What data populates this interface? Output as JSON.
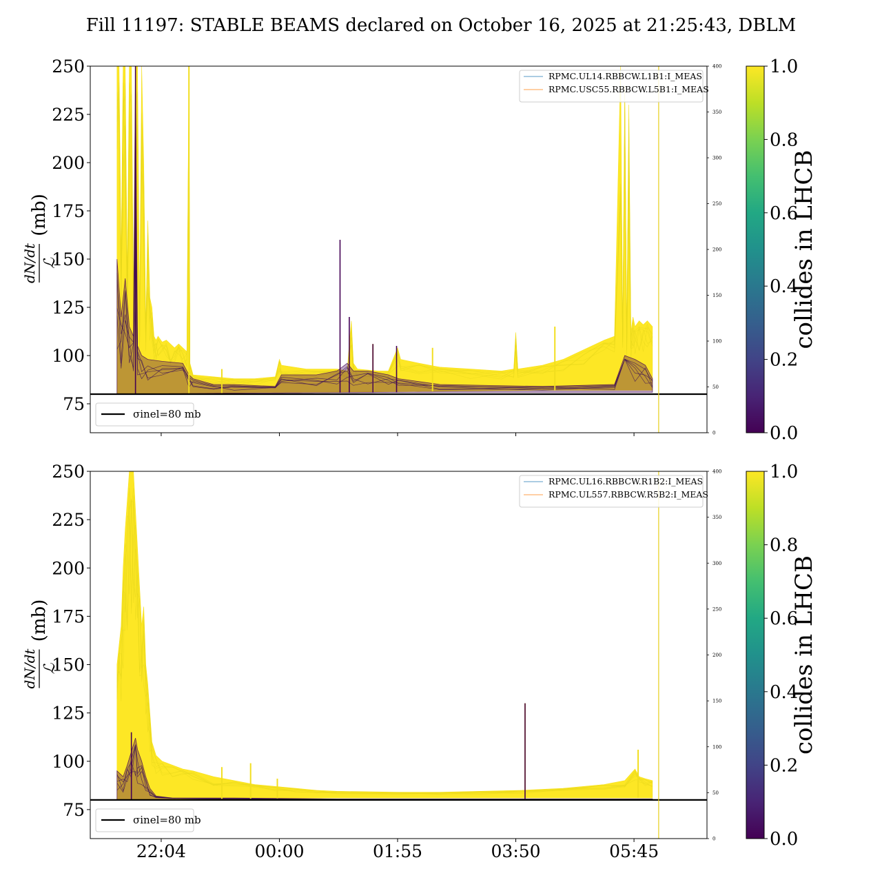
{
  "figure": {
    "title": "Fill 11197: STABLE BEAMS declared on October 16, 2025 at 21:25:43, DBLM"
  },
  "chart_data": [
    {
      "type": "line",
      "panel": "top",
      "ylabel_numerator": "dN/dt",
      "ylabel_denominator": "ℒ",
      "ylabel_unit": "(mb)",
      "ylim": [
        60,
        250
      ],
      "yticks": [
        75,
        100,
        125,
        150,
        175,
        200,
        225,
        250
      ],
      "y2lim": [
        0,
        400
      ],
      "y2ticks": [
        0,
        50,
        100,
        150,
        200,
        250,
        300,
        350,
        400
      ],
      "xlim": [
        -40,
        560
      ],
      "xticks": [
        {
          "label": "",
          "t": 29
        },
        {
          "label": "",
          "t": 144
        },
        {
          "label": "",
          "t": 259
        },
        {
          "label": "",
          "t": 374
        },
        {
          "label": "",
          "t": 489
        }
      ],
      "legend": [
        "RPMC.UL14.RBBCW.L1B1:I_MEAS",
        "RPMC.USC55.RBBCW.L5B1:I_MEAS"
      ],
      "legend_colors": [
        "#1f77b4",
        "#ff7f0e"
      ],
      "sigma_line": {
        "y": 80,
        "label": "σinel=80 mb"
      },
      "vline_t": 513,
      "colorbar": {
        "label": "collides in LHCB",
        "min": 0.0,
        "max": 1.0,
        "ticks": [
          "0.0",
          "0.2",
          "0.4",
          "0.6",
          "0.8",
          "1.0"
        ]
      },
      "yellow_upper": [
        [
          -14,
          250
        ],
        [
          -12,
          250
        ],
        [
          -10,
          150
        ],
        [
          -8,
          250
        ],
        [
          -6,
          250
        ],
        [
          -4,
          140
        ],
        [
          -2,
          250
        ],
        [
          0,
          250
        ],
        [
          2,
          130
        ],
        [
          4,
          250
        ],
        [
          6,
          250
        ],
        [
          8,
          120
        ],
        [
          10,
          250
        ],
        [
          12,
          200
        ],
        [
          14,
          115
        ],
        [
          16,
          170
        ],
        [
          18,
          130
        ],
        [
          20,
          125
        ],
        [
          22,
          110
        ],
        [
          24,
          108
        ],
        [
          26,
          110
        ],
        [
          30,
          107
        ],
        [
          34,
          108
        ],
        [
          38,
          106
        ],
        [
          42,
          104
        ],
        [
          46,
          106
        ],
        [
          50,
          104
        ],
        [
          54,
          102
        ],
        [
          56,
          250
        ],
        [
          57,
          96
        ],
        [
          60,
          90
        ],
        [
          80,
          89
        ],
        [
          100,
          88
        ],
        [
          120,
          88
        ],
        [
          140,
          89
        ],
        [
          144,
          98
        ],
        [
          146,
          95
        ],
        [
          170,
          93
        ],
        [
          200,
          93
        ],
        [
          210,
          92
        ],
        [
          212,
          106
        ],
        [
          214,
          118
        ],
        [
          216,
          96
        ],
        [
          220,
          93
        ],
        [
          240,
          92
        ],
        [
          250,
          92
        ],
        [
          259,
          104
        ],
        [
          262,
          98
        ],
        [
          280,
          96
        ],
        [
          300,
          94
        ],
        [
          330,
          93
        ],
        [
          360,
          92
        ],
        [
          372,
          93
        ],
        [
          374,
          112
        ],
        [
          376,
          93
        ],
        [
          400,
          95
        ],
        [
          420,
          98
        ],
        [
          440,
          103
        ],
        [
          460,
          108
        ],
        [
          470,
          110
        ],
        [
          476,
          250
        ],
        [
          478,
          112
        ],
        [
          480,
          240
        ],
        [
          482,
          110
        ],
        [
          484,
          230
        ],
        [
          486,
          112
        ],
        [
          488,
          120
        ],
        [
          490,
          115
        ],
        [
          494,
          118
        ],
        [
          498,
          116
        ],
        [
          502,
          118
        ],
        [
          507,
          115
        ]
      ],
      "yellow_lower": [
        [
          -14,
          80
        ],
        [
          60,
          80.5
        ],
        [
          200,
          81
        ],
        [
          300,
          81.5
        ],
        [
          400,
          82
        ],
        [
          507,
          82
        ]
      ],
      "purple_upper": [
        [
          -14,
          150
        ],
        [
          -10,
          120
        ],
        [
          -6,
          140
        ],
        [
          -2,
          115
        ],
        [
          2,
          110
        ],
        [
          4,
          250
        ],
        [
          6,
          105
        ],
        [
          10,
          100
        ],
        [
          16,
          98
        ],
        [
          30,
          97
        ],
        [
          50,
          96
        ],
        [
          56,
          90
        ],
        [
          60,
          88
        ],
        [
          80,
          85
        ],
        [
          100,
          85
        ],
        [
          140,
          84
        ],
        [
          146,
          90
        ],
        [
          180,
          90
        ],
        [
          200,
          92
        ],
        [
          210,
          96
        ],
        [
          216,
          92
        ],
        [
          230,
          92
        ],
        [
          250,
          90
        ],
        [
          260,
          88
        ],
        [
          300,
          85
        ],
        [
          400,
          84
        ],
        [
          470,
          85
        ],
        [
          480,
          100
        ],
        [
          490,
          98
        ],
        [
          500,
          95
        ],
        [
          507,
          88
        ]
      ],
      "purple_lower": [
        [
          -14,
          80
        ],
        [
          100,
          80.5
        ],
        [
          300,
          81
        ],
        [
          507,
          81
        ]
      ],
      "purple_spikes": [
        {
          "t": 4,
          "y": 250
        },
        {
          "t": 203,
          "y": 160
        },
        {
          "t": 212,
          "y": 120
        },
        {
          "t": 235,
          "y": 106
        },
        {
          "t": 258,
          "y": 105
        }
      ],
      "yellow_spikes": [
        {
          "t": 56,
          "y": 250
        },
        {
          "t": 88,
          "y": 93
        },
        {
          "t": 235,
          "y": 106
        },
        {
          "t": 293,
          "y": 104
        },
        {
          "t": 412,
          "y": 115
        }
      ]
    },
    {
      "type": "line",
      "panel": "bottom",
      "ylabel_numerator": "dN/dt",
      "ylabel_denominator": "ℒ",
      "ylabel_unit": "(mb)",
      "ylim": [
        60,
        250
      ],
      "yticks": [
        75,
        100,
        125,
        150,
        175,
        200,
        225,
        250
      ],
      "y2lim": [
        0,
        400
      ],
      "y2ticks": [
        0,
        50,
        100,
        150,
        200,
        250,
        300,
        350,
        400
      ],
      "xlim": [
        -40,
        560
      ],
      "xticks": [
        {
          "label": "22:04",
          "t": 29
        },
        {
          "label": "00:00",
          "t": 144
        },
        {
          "label": "01:55",
          "t": 259
        },
        {
          "label": "03:50",
          "t": 374
        },
        {
          "label": "05:45",
          "t": 489
        }
      ],
      "legend": [
        "RPMC.UL16.RBBCW.R1B2:I_MEAS",
        "RPMC.UL557.RBBCW.R5B2:I_MEAS"
      ],
      "legend_colors": [
        "#1f77b4",
        "#ff7f0e"
      ],
      "sigma_line": {
        "y": 80,
        "label": "σinel=80 mb"
      },
      "vline_t": 513,
      "colorbar": {
        "label": "collides in LHCB",
        "min": 0.0,
        "max": 1.0,
        "ticks": [
          "0.0",
          "0.2",
          "0.4",
          "0.6",
          "0.8",
          "1.0"
        ]
      },
      "yellow_upper": [
        [
          -14,
          150
        ],
        [
          -12,
          160
        ],
        [
          -10,
          170
        ],
        [
          -8,
          200
        ],
        [
          -6,
          220
        ],
        [
          -4,
          235
        ],
        [
          -2,
          250
        ],
        [
          0,
          250
        ],
        [
          2,
          250
        ],
        [
          4,
          230
        ],
        [
          6,
          210
        ],
        [
          8,
          190
        ],
        [
          10,
          170
        ],
        [
          12,
          180
        ],
        [
          14,
          150
        ],
        [
          16,
          140
        ],
        [
          18,
          125
        ],
        [
          20,
          110
        ],
        [
          24,
          103
        ],
        [
          30,
          100
        ],
        [
          40,
          98
        ],
        [
          50,
          96
        ],
        [
          60,
          95
        ],
        [
          80,
          92
        ],
        [
          100,
          90
        ],
        [
          120,
          88
        ],
        [
          140,
          87
        ],
        [
          160,
          86
        ],
        [
          180,
          85
        ],
        [
          200,
          84.5
        ],
        [
          260,
          84
        ],
        [
          300,
          84
        ],
        [
          340,
          84.5
        ],
        [
          380,
          85
        ],
        [
          420,
          86
        ],
        [
          460,
          88
        ],
        [
          480,
          90
        ],
        [
          490,
          96
        ],
        [
          494,
          92
        ],
        [
          500,
          91
        ],
        [
          507,
          90
        ]
      ],
      "yellow_lower": [
        [
          -14,
          80
        ],
        [
          60,
          80.5
        ],
        [
          200,
          81
        ],
        [
          507,
          81
        ]
      ],
      "purple_upper": [
        [
          -14,
          95
        ],
        [
          -8,
          92
        ],
        [
          -4,
          98
        ],
        [
          0,
          105
        ],
        [
          4,
          112
        ],
        [
          6,
          106
        ],
        [
          10,
          100
        ],
        [
          14,
          92
        ],
        [
          18,
          86
        ],
        [
          24,
          82
        ],
        [
          40,
          81
        ],
        [
          100,
          81
        ],
        [
          200,
          80.5
        ],
        [
          300,
          80.5
        ],
        [
          507,
          80.5
        ]
      ],
      "purple_lower": [
        [
          -14,
          80
        ],
        [
          507,
          80
        ]
      ],
      "purple_spikes": [
        {
          "t": 0,
          "y": 115
        },
        {
          "t": 383,
          "y": 130
        }
      ],
      "yellow_spikes": [
        {
          "t": 88,
          "y": 97
        },
        {
          "t": 116,
          "y": 99
        },
        {
          "t": 142,
          "y": 91
        },
        {
          "t": 383,
          "y": 130
        },
        {
          "t": 493,
          "y": 106
        }
      ]
    }
  ]
}
